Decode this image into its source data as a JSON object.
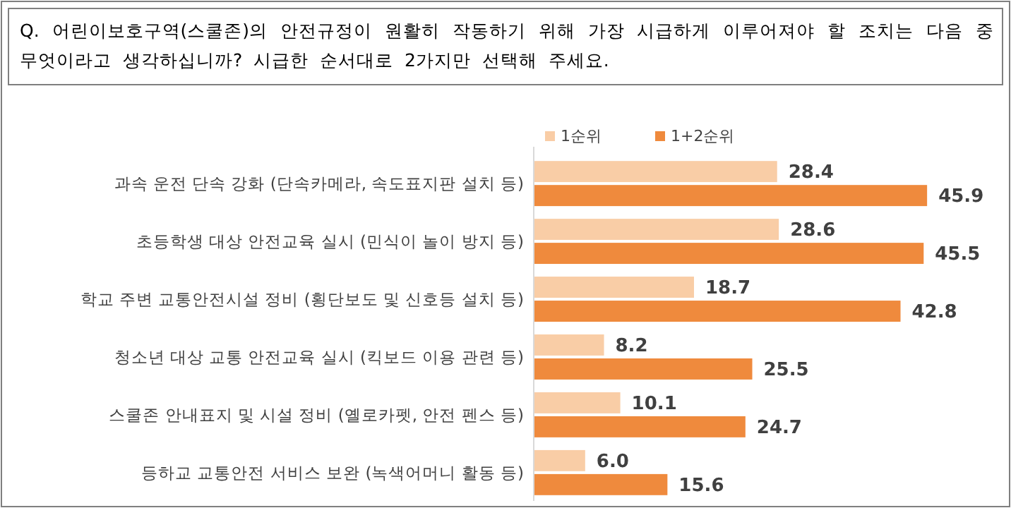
{
  "chart_data": {
    "type": "bar",
    "orientation": "horizontal",
    "title": "Q. 어린이보호구역(스쿨존)의 안전규정이 원활히 작동하기 위해 가장 시급하게 이루어져야 할 조치는 다음 중 무엇이라고 생각하십니까? 시급한 순서대로 2가지만 선택해 주세요.",
    "categories": [
      "과속 운전 단속 강화 (단속카메라, 속도표지판 설치 등)",
      "초등학생 대상 안전교육 실시 (민식이 놀이 방지 등)",
      "학교 주변 교통안전시설 정비 (횡단보도 및 신호등 설치 등)",
      "청소년 대상 교통 안전교육 실시 (킥보드 이용 관련 등)",
      "스쿨존 안내표지 및 시설 정비 (옐로카펫, 안전 펜스 등)",
      "등하교 교통안전 서비스 보완 (녹색어머니 활동 등)"
    ],
    "series": [
      {
        "name": "1순위",
        "color": "#f9cda6",
        "values": [
          28.4,
          28.6,
          18.7,
          8.2,
          10.1,
          6.0
        ],
        "value_labels": [
          "28.4",
          "28.6",
          "18.7",
          "8.2",
          "10.1",
          "6.0"
        ]
      },
      {
        "name": "1+2순위",
        "color": "#ef8a3d",
        "values": [
          45.9,
          45.5,
          42.8,
          25.5,
          24.7,
          15.6
        ],
        "value_labels": [
          "45.9",
          "45.5",
          "42.8",
          "25.5",
          "24.7",
          "15.6"
        ]
      }
    ],
    "legend": "top",
    "tick_labels": "y"
  }
}
